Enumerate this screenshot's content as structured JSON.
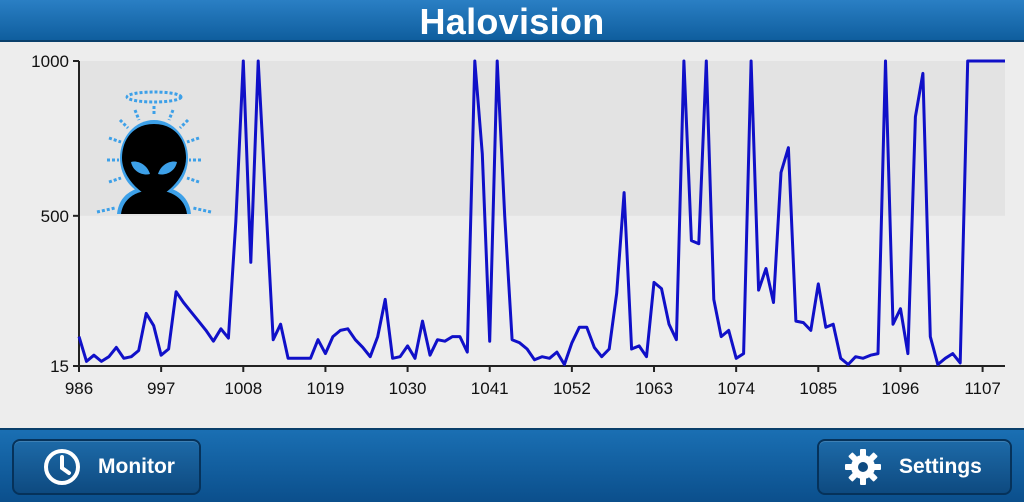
{
  "header": {
    "title": "Halovision"
  },
  "footer": {
    "monitor_label": "Monitor",
    "settings_label": "Settings"
  },
  "colors": {
    "header": "#1a6fb3",
    "line": "#1010c8",
    "band": "#e3e3e3"
  },
  "logo": {
    "icon": "alien-halo-icon"
  },
  "chart_data": {
    "type": "line",
    "title": "",
    "xlabel": "",
    "ylabel": "",
    "xlim": [
      986,
      1110
    ],
    "ylim": [
      15,
      1000
    ],
    "y_ticks": [
      1000,
      500,
      15
    ],
    "x_ticks": [
      986,
      997,
      1008,
      1019,
      1030,
      1041,
      1052,
      1063,
      1074,
      1085,
      1096,
      1107
    ],
    "band_range": [
      500,
      1000
    ],
    "grid": false,
    "series": [
      {
        "x": [
          986,
          987,
          988,
          989,
          990,
          991,
          992,
          993,
          994,
          995,
          996,
          997,
          998,
          999,
          1000,
          1001,
          1002,
          1003,
          1004,
          1005,
          1006,
          1007,
          1008,
          1009,
          1010,
          1011,
          1012,
          1013,
          1014,
          1015,
          1016,
          1017,
          1018,
          1019,
          1020,
          1021,
          1022,
          1023,
          1024,
          1025,
          1026,
          1027,
          1028,
          1029,
          1030,
          1031,
          1032,
          1033,
          1034,
          1035,
          1036,
          1037,
          1038,
          1039,
          1040,
          1041,
          1042,
          1043,
          1044,
          1045,
          1046,
          1047,
          1048,
          1049,
          1050,
          1051,
          1052,
          1053,
          1054,
          1055,
          1056,
          1057,
          1058,
          1059,
          1060,
          1061,
          1062,
          1063,
          1064,
          1065,
          1066,
          1067,
          1068,
          1069,
          1070,
          1071,
          1072,
          1073,
          1074,
          1075,
          1076,
          1077,
          1078,
          1079,
          1080,
          1081,
          1082,
          1083,
          1084,
          1085,
          1086,
          1087,
          1088,
          1089,
          1090,
          1091,
          1092,
          1093,
          1094,
          1095,
          1096,
          1097,
          1098,
          1099,
          1100,
          1101,
          1102,
          1103,
          1104,
          1105,
          1106,
          1107,
          1108,
          1109,
          1110
        ],
        "y": [
          110,
          30,
          50,
          30,
          45,
          75,
          40,
          45,
          65,
          185,
          145,
          50,
          70,
          255,
          220,
          190,
          160,
          130,
          95,
          135,
          105,
          480,
          1000,
          350,
          1000,
          550,
          100,
          150,
          40,
          40,
          40,
          40,
          100,
          55,
          110,
          130,
          135,
          100,
          75,
          45,
          110,
          230,
          40,
          45,
          80,
          40,
          160,
          50,
          100,
          95,
          110,
          110,
          60,
          1000,
          700,
          95,
          1000,
          500,
          100,
          90,
          70,
          35,
          45,
          40,
          60,
          20,
          90,
          140,
          140,
          75,
          45,
          70,
          250,
          575,
          70,
          80,
          45,
          285,
          265,
          150,
          100,
          1000,
          420,
          410,
          1000,
          230,
          110,
          130,
          40,
          55,
          1000,
          260,
          330,
          220,
          640,
          720,
          160,
          155,
          130,
          280,
          140,
          150,
          40,
          20,
          45,
          40,
          50,
          55,
          1000,
          150,
          200,
          55,
          820,
          960,
          110,
          20,
          40,
          55,
          25,
          1000,
          1000,
          1000,
          1000,
          1000,
          1000
        ]
      }
    ]
  }
}
